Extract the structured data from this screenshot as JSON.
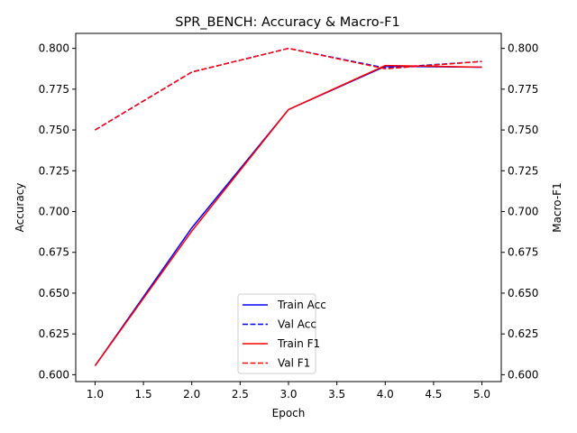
{
  "chart_data": {
    "type": "line",
    "title": "SPR_BENCH: Accuracy & Macro-F1",
    "xlabel": "Epoch",
    "ylabel_left": "Accuracy",
    "ylabel_right": "Macro-F1",
    "x": [
      1,
      2,
      3,
      4,
      5
    ],
    "xlim": [
      0.8,
      5.2
    ],
    "ylim_left": [
      0.5958,
      0.8092
    ],
    "ylim_right": [
      0.5958,
      0.8092
    ],
    "x_ticks": [
      "1.0",
      "1.5",
      "2.0",
      "2.5",
      "3.0",
      "3.5",
      "4.0",
      "4.5",
      "5.0"
    ],
    "y_ticks_left": [
      "0.600",
      "0.625",
      "0.650",
      "0.675",
      "0.700",
      "0.725",
      "0.750",
      "0.775",
      "0.800"
    ],
    "y_ticks_right": [
      "0.600",
      "0.625",
      "0.650",
      "0.675",
      "0.700",
      "0.725",
      "0.750",
      "0.775",
      "0.800"
    ],
    "grid": false,
    "legend_position": "lower-center",
    "series": [
      {
        "name": "Train Acc",
        "axis": "left",
        "values": [
          0.6055,
          0.69,
          0.7625,
          0.789,
          0.7885
        ],
        "color": "#0000ff",
        "dash": "solid"
      },
      {
        "name": "Val Acc",
        "axis": "left",
        "values": [
          0.75,
          0.7855,
          0.8,
          0.788,
          0.792
        ],
        "color": "#0000ff",
        "dash": "dashed"
      },
      {
        "name": "Train F1",
        "axis": "right",
        "values": [
          0.6055,
          0.688,
          0.7625,
          0.7895,
          0.7885
        ],
        "color": "#ff0000",
        "dash": "solid"
      },
      {
        "name": "Val F1",
        "axis": "right",
        "values": [
          0.75,
          0.7855,
          0.8,
          0.7875,
          0.792
        ],
        "color": "#ff0000",
        "dash": "dashed"
      }
    ]
  }
}
